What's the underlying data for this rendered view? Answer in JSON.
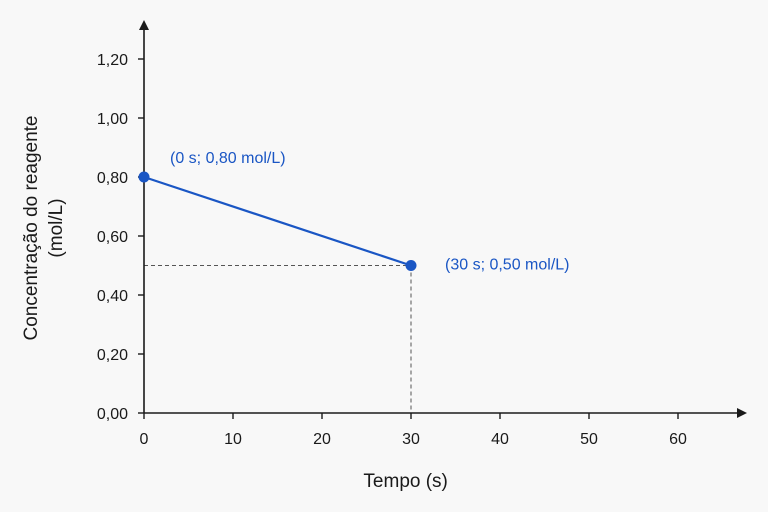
{
  "chart_data": {
    "type": "line",
    "xlabel": "Tempo (s)",
    "ylabel": [
      "Concentração do reagente",
      "(mol/L)"
    ],
    "xlim": [
      0,
      60
    ],
    "ylim": [
      0,
      1.2
    ],
    "x_ticks": [
      0,
      10,
      20,
      30,
      40,
      50,
      60
    ],
    "x_tick_labels": [
      "0",
      "10",
      "20",
      "30",
      "40",
      "50",
      "60"
    ],
    "y_ticks": [
      0,
      0.2,
      0.4,
      0.6,
      0.8,
      1.0,
      1.2
    ],
    "y_tick_labels": [
      "0,00",
      "0,20",
      "0,40",
      "0,60",
      "0,80",
      "1,00",
      "1,20"
    ],
    "grid": false,
    "series": [
      {
        "x": [
          0,
          30
        ],
        "y": [
          0.8,
          0.5
        ],
        "point_labels": [
          "(0 s; 0,80 mol/L)",
          "(30 s; 0,50 mol/L)"
        ],
        "color": "#1a56c4"
      }
    ],
    "guide_lines": "dashed",
    "axis_color": "#1a1a1a"
  }
}
